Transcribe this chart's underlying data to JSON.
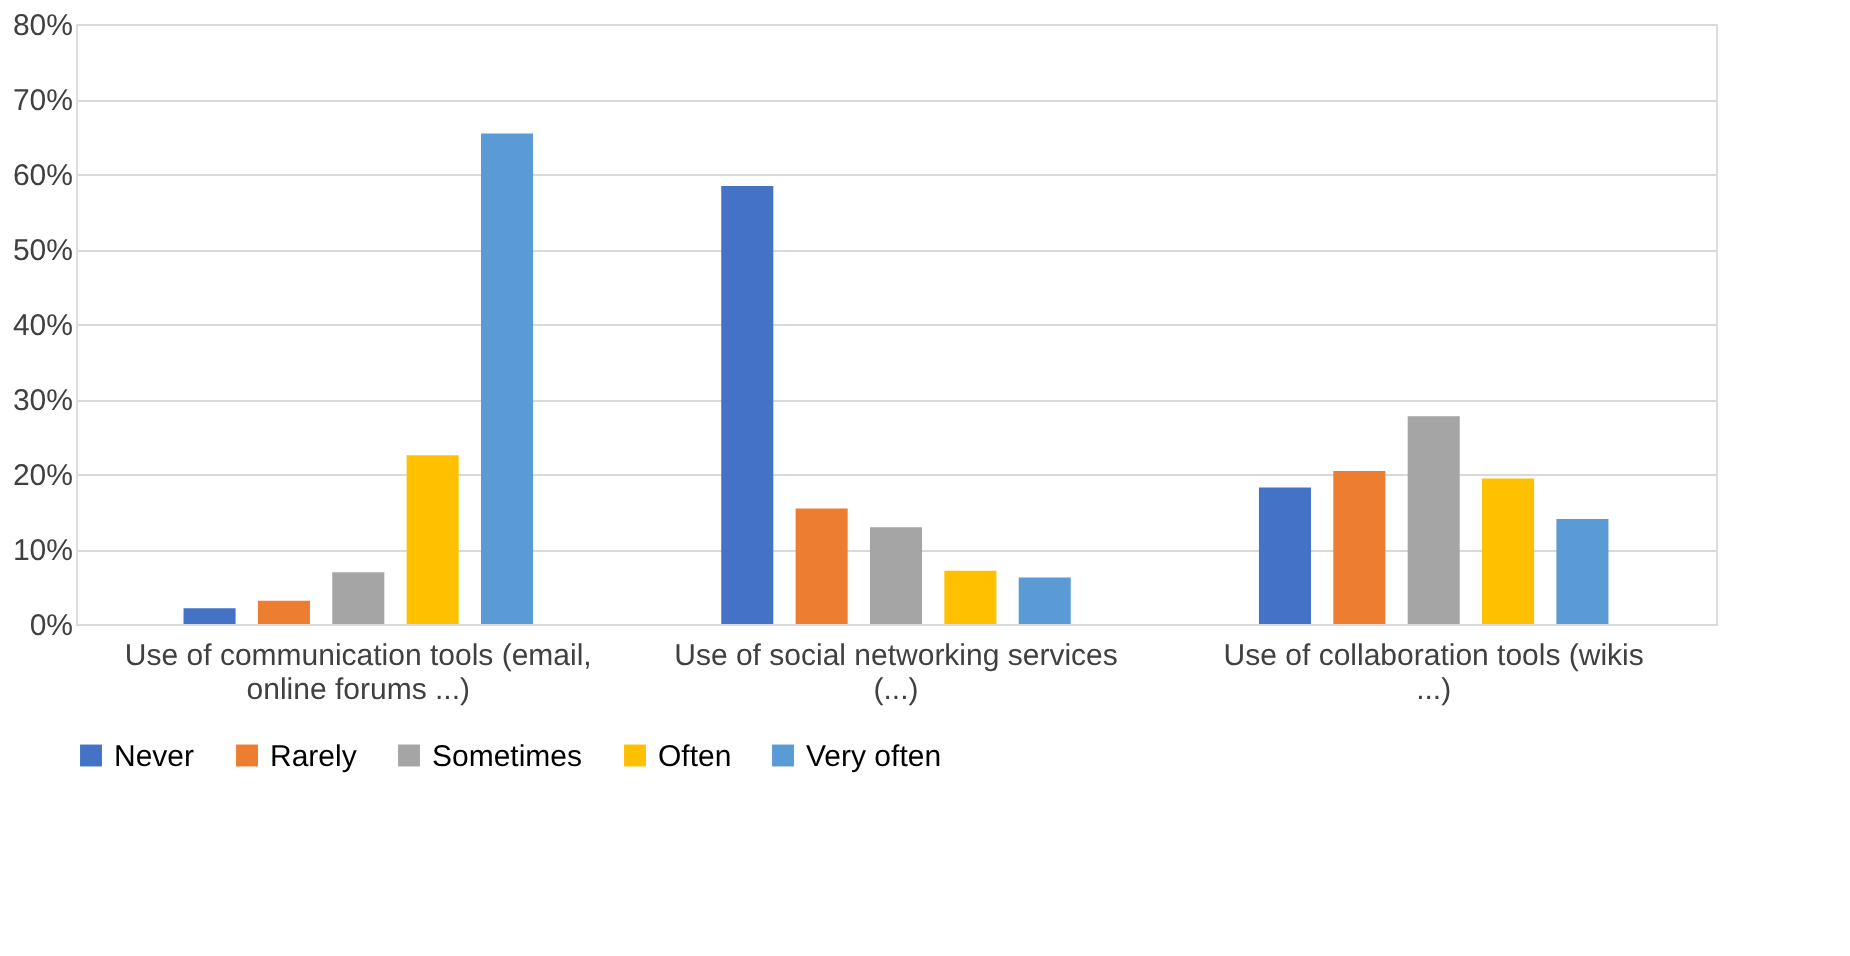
{
  "chart_data": {
    "type": "bar",
    "categories": [
      "Use of communication tools (email, online forums ...)",
      "Use of social networking services (...)",
      "Use of collaboration tools (wikis ...)"
    ],
    "series": [
      {
        "name": "Never",
        "color": "#4472c4",
        "values": [
          2.1,
          58.4,
          18.2
        ]
      },
      {
        "name": "Rarely",
        "color": "#ed7d31",
        "values": [
          3.1,
          15.4,
          20.4
        ]
      },
      {
        "name": "Sometimes",
        "color": "#a5a5a5",
        "values": [
          6.9,
          12.9,
          27.7
        ]
      },
      {
        "name": "Often",
        "color": "#ffc000",
        "values": [
          22.5,
          7.1,
          19.4
        ]
      },
      {
        "name": "Very often",
        "color": "#5b9bd5",
        "values": [
          65.4,
          6.2,
          14.0
        ]
      }
    ],
    "ylim": [
      0,
      80
    ],
    "yticks": [
      {
        "value": 0,
        "label": "0%"
      },
      {
        "value": 10,
        "label": "10%"
      },
      {
        "value": 20,
        "label": "20%"
      },
      {
        "value": 30,
        "label": "30%"
      },
      {
        "value": 40,
        "label": "40%"
      },
      {
        "value": 50,
        "label": "50%"
      },
      {
        "value": 60,
        "label": "60%"
      },
      {
        "value": 70,
        "label": "70%"
      },
      {
        "value": 80,
        "label": "80%"
      }
    ],
    "grid": "y",
    "legend": "bottom"
  }
}
